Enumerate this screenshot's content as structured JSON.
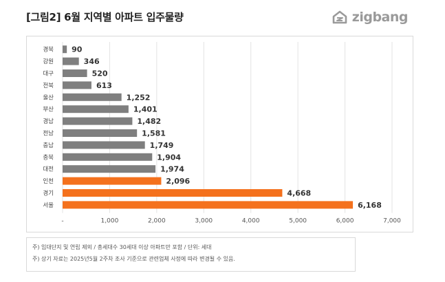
{
  "header": {
    "title": "[그림2] 6월 지역별 아파트 입주물량",
    "brand": "zigbang"
  },
  "notes": [
    "주) 임대단지 및 연립 제외 / 총세대수 30세대 이상 아파트만 포함 / 단위: 세대",
    "주) 상기 자료는 2025년5월 2주차 조사 기준으로 관련업체 사정에 따라 변경될 수 있음."
  ],
  "colors": {
    "gray_bar": "#7f7f7f",
    "highlight_bar": "#f4711d",
    "brand": "#9a9a9a"
  },
  "chart_data": {
    "type": "bar",
    "orientation": "horizontal",
    "categories": [
      "경북",
      "강원",
      "대구",
      "전북",
      "울산",
      "부산",
      "경남",
      "전남",
      "충남",
      "충북",
      "대전",
      "인천",
      "경기",
      "서울"
    ],
    "values": [
      90,
      346,
      520,
      613,
      1252,
      1401,
      1482,
      1581,
      1749,
      1904,
      1974,
      2096,
      4668,
      6168
    ],
    "value_labels": [
      "90",
      "346",
      "520",
      "613",
      "1,252",
      "1,401",
      "1,482",
      "1,581",
      "1,749",
      "1,904",
      "1,974",
      "2,096",
      "4,668",
      "6,168"
    ],
    "highlighted": [
      "인천",
      "경기",
      "서울"
    ],
    "xlim": [
      0,
      7000
    ],
    "x_ticks": [
      "-",
      "1,000",
      "2,000",
      "3,000",
      "4,000",
      "5,000",
      "6,000",
      "7,000"
    ],
    "grid": true,
    "legend": "none"
  }
}
